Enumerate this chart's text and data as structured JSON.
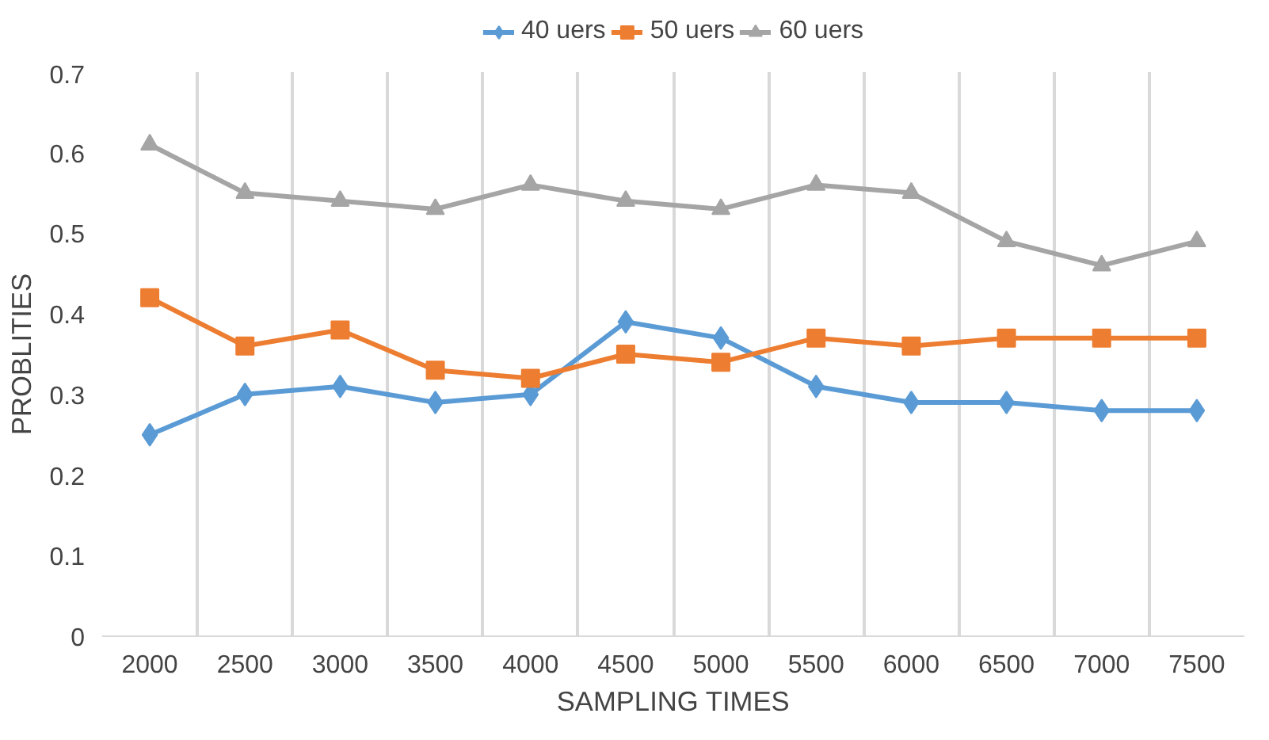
{
  "chart_data": {
    "type": "line",
    "xlabel": "SAMPLING TIMES",
    "ylabel": "PROBLITIES",
    "categories": [
      "2000",
      "2500",
      "3000",
      "3500",
      "4000",
      "4500",
      "5000",
      "5500",
      "6000",
      "6500",
      "7000",
      "7500"
    ],
    "series": [
      {
        "name": "40 uers",
        "color": "#5b9bd5",
        "marker": "diamond",
        "values": [
          0.25,
          0.3,
          0.31,
          0.29,
          0.3,
          0.39,
          0.37,
          0.31,
          0.29,
          0.29,
          0.28,
          0.28
        ]
      },
      {
        "name": "50 uers",
        "color": "#ed7d31",
        "marker": "square",
        "values": [
          0.42,
          0.36,
          0.38,
          0.33,
          0.32,
          0.35,
          0.34,
          0.37,
          0.36,
          0.37,
          0.37,
          0.37
        ]
      },
      {
        "name": "60 uers",
        "color": "#a5a5a5",
        "marker": "triangle",
        "values": [
          0.61,
          0.55,
          0.54,
          0.53,
          0.56,
          0.54,
          0.53,
          0.56,
          0.55,
          0.49,
          0.46,
          0.49
        ]
      }
    ],
    "ylim": [
      0,
      0.7
    ],
    "yticks": [
      0,
      0.1,
      0.2,
      0.3,
      0.4,
      0.5,
      0.6,
      0.7
    ],
    "grid": "x",
    "legend": "top",
    "line_style": "solid"
  }
}
